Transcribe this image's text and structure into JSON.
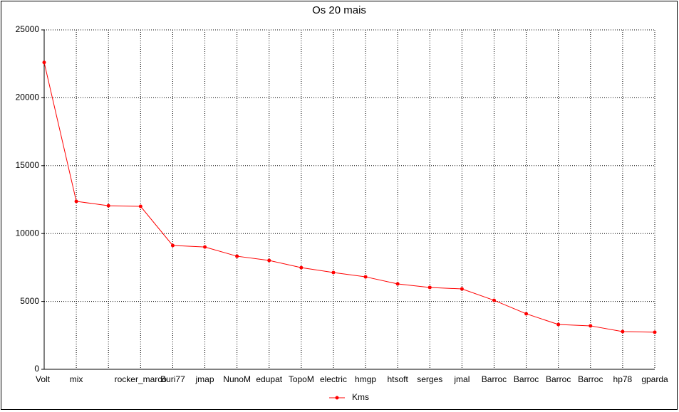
{
  "chart_data": {
    "type": "line",
    "title": "Os 20 mais",
    "categories": [
      "Volt",
      "mix",
      null,
      "rocker_marco",
      "Buri77",
      "jmap",
      "NunoM",
      "edupat",
      "TopoM",
      "electric",
      "hmgp",
      "htsoft",
      "serges",
      "jmal",
      "Barroc",
      "Barroc",
      "Barroc",
      "Barroc",
      "hp78",
      "gparda"
    ],
    "series": [
      {
        "name": "Kms",
        "color": "#ff0000",
        "values": [
          22600,
          12370,
          12050,
          12000,
          9120,
          9010,
          8330,
          8020,
          7490,
          7130,
          6810,
          6290,
          6030,
          5920,
          5080,
          4090,
          3300,
          3200,
          2780,
          2730
        ]
      }
    ],
    "ylim": [
      0,
      25000
    ],
    "yticks": [
      0,
      5000,
      10000,
      15000,
      20000,
      25000
    ],
    "grid": true,
    "legend": "bottom"
  }
}
